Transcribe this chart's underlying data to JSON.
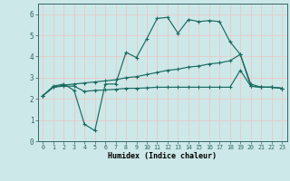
{
  "xlabel": "Humidex (Indice chaleur)",
  "bg_color": "#cde8e8",
  "line_color": "#1a6b60",
  "grid_color": "#e8c8c8",
  "ylim": [
    0,
    6.5
  ],
  "xlim": [
    -0.5,
    23.5
  ],
  "yticks": [
    0,
    1,
    2,
    3,
    4,
    5,
    6
  ],
  "xticks": [
    0,
    1,
    2,
    3,
    4,
    5,
    6,
    7,
    8,
    9,
    10,
    11,
    12,
    13,
    14,
    15,
    16,
    17,
    18,
    19,
    20,
    21,
    22,
    23
  ],
  "line1_x": [
    0,
    1,
    2,
    3,
    4,
    5,
    6,
    7,
    8,
    9,
    10,
    11,
    12,
    13,
    14,
    15,
    16,
    17,
    18,
    19,
    20,
    21,
    22,
    23
  ],
  "line1_y": [
    2.15,
    2.6,
    2.7,
    2.4,
    0.8,
    0.5,
    2.7,
    2.7,
    4.2,
    3.95,
    4.85,
    5.8,
    5.85,
    5.1,
    5.75,
    5.65,
    5.7,
    5.65,
    4.7,
    4.1,
    2.6,
    2.55,
    2.55,
    2.5
  ],
  "line2_x": [
    0,
    1,
    2,
    3,
    4,
    5,
    6,
    7,
    8,
    9,
    10,
    11,
    12,
    13,
    14,
    15,
    16,
    17,
    18,
    19,
    20,
    21,
    22,
    23
  ],
  "line2_y": [
    2.15,
    2.55,
    2.65,
    2.7,
    2.75,
    2.8,
    2.85,
    2.9,
    3.0,
    3.05,
    3.15,
    3.25,
    3.35,
    3.4,
    3.5,
    3.55,
    3.65,
    3.7,
    3.8,
    4.1,
    2.7,
    2.55,
    2.55,
    2.5
  ],
  "line3_x": [
    0,
    1,
    2,
    3,
    4,
    5,
    6,
    7,
    8,
    9,
    10,
    11,
    12,
    13,
    14,
    15,
    16,
    17,
    18,
    19,
    20,
    21,
    22,
    23
  ],
  "line3_y": [
    2.15,
    2.55,
    2.6,
    2.6,
    2.35,
    2.4,
    2.42,
    2.45,
    2.5,
    2.5,
    2.52,
    2.55,
    2.55,
    2.55,
    2.55,
    2.55,
    2.55,
    2.55,
    2.55,
    3.35,
    2.6,
    2.55,
    2.55,
    2.5
  ]
}
